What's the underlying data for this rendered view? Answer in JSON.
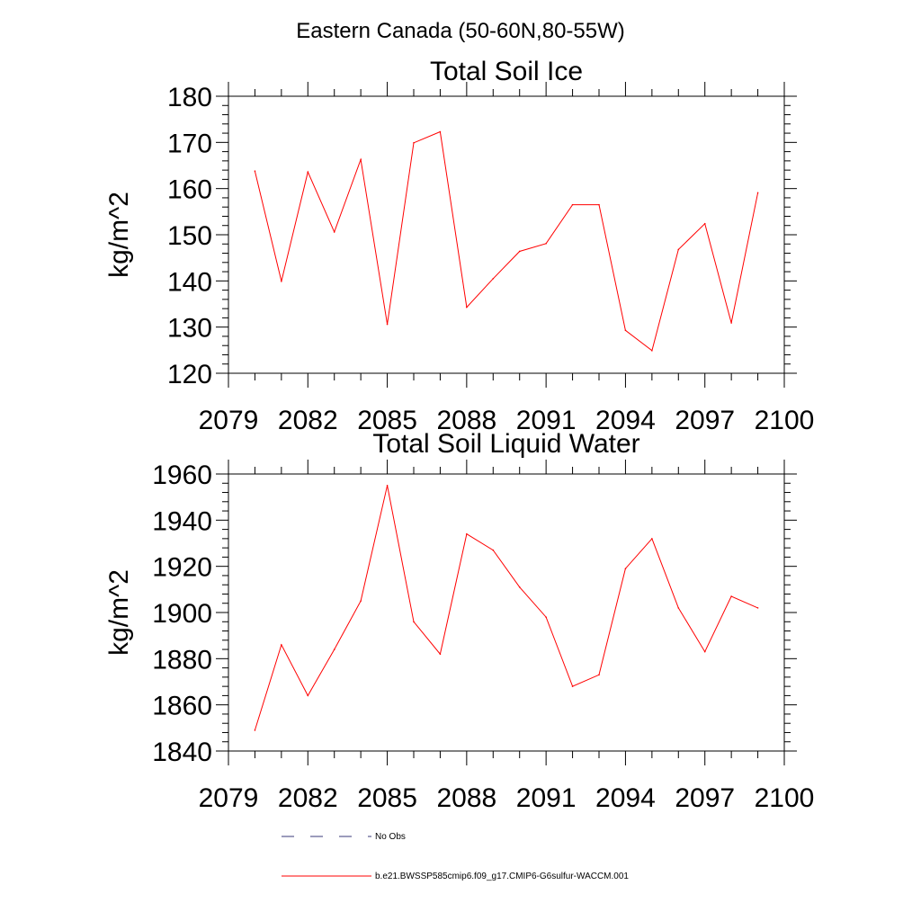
{
  "figure": {
    "title": "Eastern Canada (50-60N,80-55W)"
  },
  "legend": {
    "entries": [
      {
        "label": "No Obs",
        "color": "#3a3a7a",
        "dash": "dashed"
      },
      {
        "label": "b.e21.BWSSP585cmip6.f09_g17.CMIP6-G6sulfur-WACCM.001",
        "color": "#ff0000",
        "dash": "solid"
      }
    ]
  },
  "chart_data": [
    {
      "type": "line",
      "title": "Total Soil Ice",
      "xlabel": "",
      "ylabel": "kg/m^2",
      "xlim": [
        2079,
        2100
      ],
      "ylim": [
        120,
        180
      ],
      "xticks": [
        "2079",
        "2082",
        "2085",
        "2088",
        "2091",
        "2094",
        "2097",
        "2100"
      ],
      "yticks": [
        "120",
        "130",
        "140",
        "150",
        "160",
        "170",
        "180"
      ],
      "x": [
        2080,
        2081,
        2082,
        2083,
        2084,
        2085,
        2086,
        2087,
        2088,
        2089,
        2090,
        2091,
        2092,
        2093,
        2094,
        2095,
        2096,
        2097,
        2098,
        2099
      ],
      "series": [
        {
          "name": "b.e21.BWSSP585cmip6.f09_g17.CMIP6-G6sulfur-WACCM.001",
          "color": "#ff0000",
          "values": [
            163.8,
            139.9,
            163.6,
            150.6,
            166.3,
            130.6,
            169.9,
            172.3,
            134.3,
            140.5,
            146.4,
            148.1,
            156.5,
            156.5,
            129.3,
            124.9,
            146.8,
            152.4,
            130.9,
            159.1
          ]
        }
      ],
      "grid": false
    },
    {
      "type": "line",
      "title": "Total Soil Liquid Water",
      "xlabel": "",
      "ylabel": "kg/m^2",
      "xlim": [
        2079,
        2100
      ],
      "ylim": [
        1840,
        1960
      ],
      "xticks": [
        "2079",
        "2082",
        "2085",
        "2088",
        "2091",
        "2094",
        "2097",
        "2100"
      ],
      "yticks": [
        "1840",
        "1860",
        "1880",
        "1900",
        "1920",
        "1940",
        "1960"
      ],
      "x": [
        2080,
        2081,
        2082,
        2083,
        2084,
        2085,
        2086,
        2087,
        2088,
        2089,
        2090,
        2091,
        2092,
        2093,
        2094,
        2095,
        2096,
        2097,
        2098,
        2099
      ],
      "series": [
        {
          "name": "b.e21.BWSSP585cmip6.f09_g17.CMIP6-G6sulfur-WACCM.001",
          "color": "#ff0000",
          "values": [
            1849,
            1886,
            1864,
            1884,
            1905,
            1955,
            1896,
            1882,
            1934,
            1927,
            1911,
            1898,
            1868,
            1873,
            1919,
            1932,
            1902,
            1883,
            1907,
            1902
          ]
        }
      ],
      "grid": false
    }
  ]
}
